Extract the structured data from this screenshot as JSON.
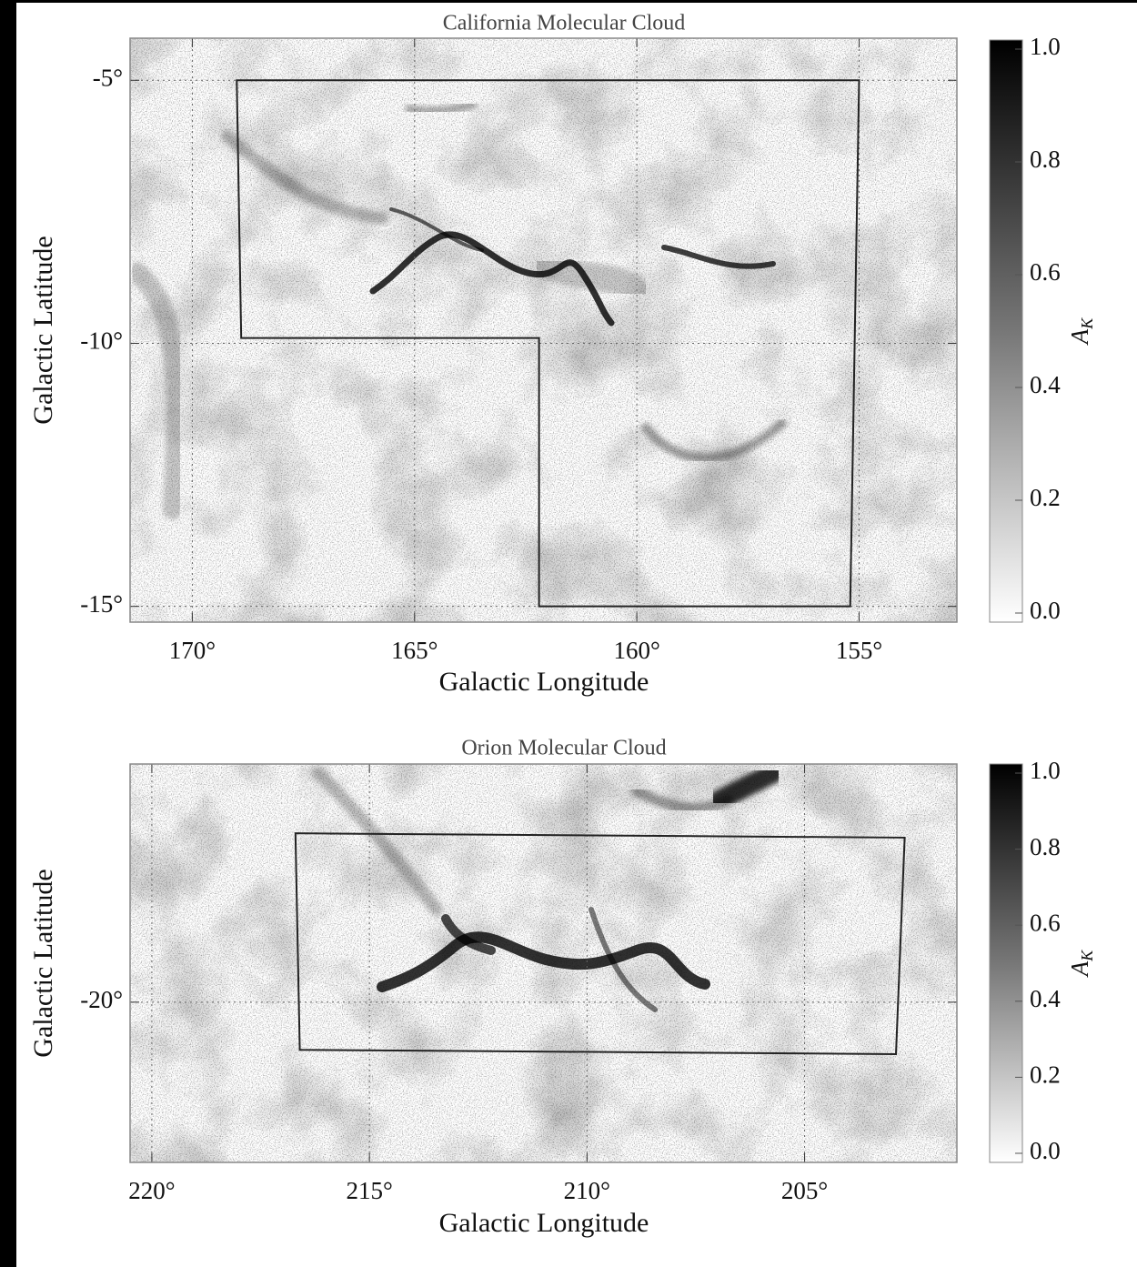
{
  "chart_data": [
    {
      "type": "map",
      "title": "California Molecular Cloud",
      "xlabel": "Galactic Longitude",
      "ylabel": "Galactic Latitude",
      "xlim": [
        171.4,
        152.8
      ],
      "ylim": [
        -15.3,
        -4.2
      ],
      "xticks": [
        {
          "value": 170,
          "label": "170°"
        },
        {
          "value": 165,
          "label": "165°"
        },
        {
          "value": 160,
          "label": "160°"
        },
        {
          "value": 155,
          "label": "155°"
        }
      ],
      "yticks": [
        {
          "value": -5,
          "label": "-5°"
        },
        {
          "value": -10,
          "label": "-10°"
        },
        {
          "value": -15,
          "label": "-15°"
        }
      ],
      "grid": true,
      "outline": {
        "lon": [
          169,
          155,
          155.2,
          162.2,
          162.2,
          168.9
        ],
        "lat": [
          -5,
          -5,
          -15,
          -15,
          -9.9,
          -9.9
        ]
      },
      "colorbar": {
        "label": {
          "base": "A",
          "sub": "K"
        },
        "lim": [
          0,
          1
        ],
        "ticks": [
          {
            "value": 0,
            "label": "0.0"
          },
          {
            "value": 0.2,
            "label": "0.2"
          },
          {
            "value": 0.4,
            "label": "0.4"
          },
          {
            "value": 0.6,
            "label": "0.6"
          },
          {
            "value": 0.8,
            "label": "0.8"
          },
          {
            "value": 1,
            "label": "1.0"
          }
        ]
      }
    },
    {
      "type": "map",
      "title": "Orion Molecular Cloud",
      "xlabel": "Galactic Longitude",
      "ylabel": "Galactic Latitude",
      "xlim": [
        220.5,
        201.5
      ],
      "ylim": [
        -23.7,
        -14.5
      ],
      "xticks": [
        {
          "value": 220,
          "label": "220°"
        },
        {
          "value": 215,
          "label": "215°"
        },
        {
          "value": 210,
          "label": "210°"
        },
        {
          "value": 205,
          "label": "205°"
        }
      ],
      "yticks": [
        {
          "value": -20,
          "label": "-20°"
        }
      ],
      "grid": true,
      "outline": {
        "lon": [
          216.7,
          202.7,
          202.9,
          216.6
        ],
        "lat": [
          -16.1,
          -16.2,
          -21.2,
          -21.1
        ]
      },
      "colorbar": {
        "label": {
          "base": "A",
          "sub": "K"
        },
        "lim": [
          0,
          1
        ],
        "ticks": [
          {
            "value": 0,
            "label": "0.0"
          },
          {
            "value": 0.2,
            "label": "0.2"
          },
          {
            "value": 0.4,
            "label": "0.4"
          },
          {
            "value": 0.6,
            "label": "0.6"
          },
          {
            "value": 0.8,
            "label": "0.8"
          },
          {
            "value": 1,
            "label": "1.0"
          }
        ]
      }
    }
  ]
}
